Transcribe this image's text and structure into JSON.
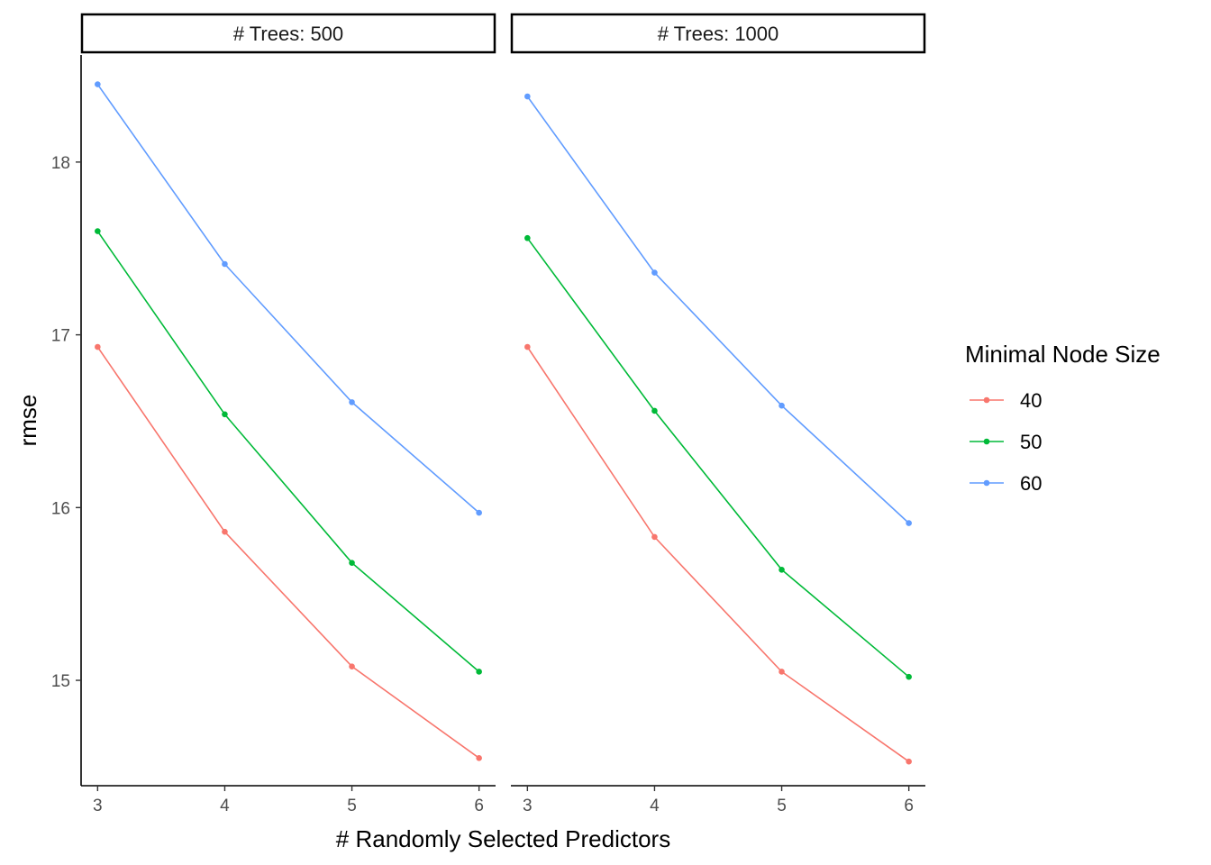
{
  "chart_data": {
    "type": "line",
    "facet_title_prefix": "# Trees: ",
    "facets": [
      {
        "label": "500",
        "series": [
          {
            "name": "40",
            "values": [
              16.93,
              15.86,
              15.08,
              14.55
            ]
          },
          {
            "name": "50",
            "values": [
              17.6,
              16.54,
              15.68,
              15.05
            ]
          },
          {
            "name": "60",
            "values": [
              18.45,
              17.41,
              16.61,
              15.97
            ]
          }
        ]
      },
      {
        "label": "1000",
        "series": [
          {
            "name": "40",
            "values": [
              16.93,
              15.83,
              15.05,
              14.53
            ]
          },
          {
            "name": "50",
            "values": [
              17.56,
              16.56,
              15.64,
              15.02
            ]
          },
          {
            "name": "60",
            "values": [
              18.38,
              17.36,
              16.59,
              15.91
            ]
          }
        ]
      }
    ],
    "x": [
      3,
      4,
      5,
      6
    ],
    "xlabel": "# Randomly Selected Predictors",
    "ylabel": "rmse",
    "yticks": [
      15,
      16,
      17,
      18
    ],
    "xlim": [
      2.87,
      6.13
    ],
    "ylim": [
      14.39,
      18.62
    ],
    "legend": {
      "title": "Minimal Node Size",
      "entries": [
        "40",
        "50",
        "60"
      ],
      "position": "right"
    },
    "colors": {
      "40": "#F8766D",
      "50": "#00BA38",
      "60": "#619CFF"
    },
    "grid": false
  }
}
